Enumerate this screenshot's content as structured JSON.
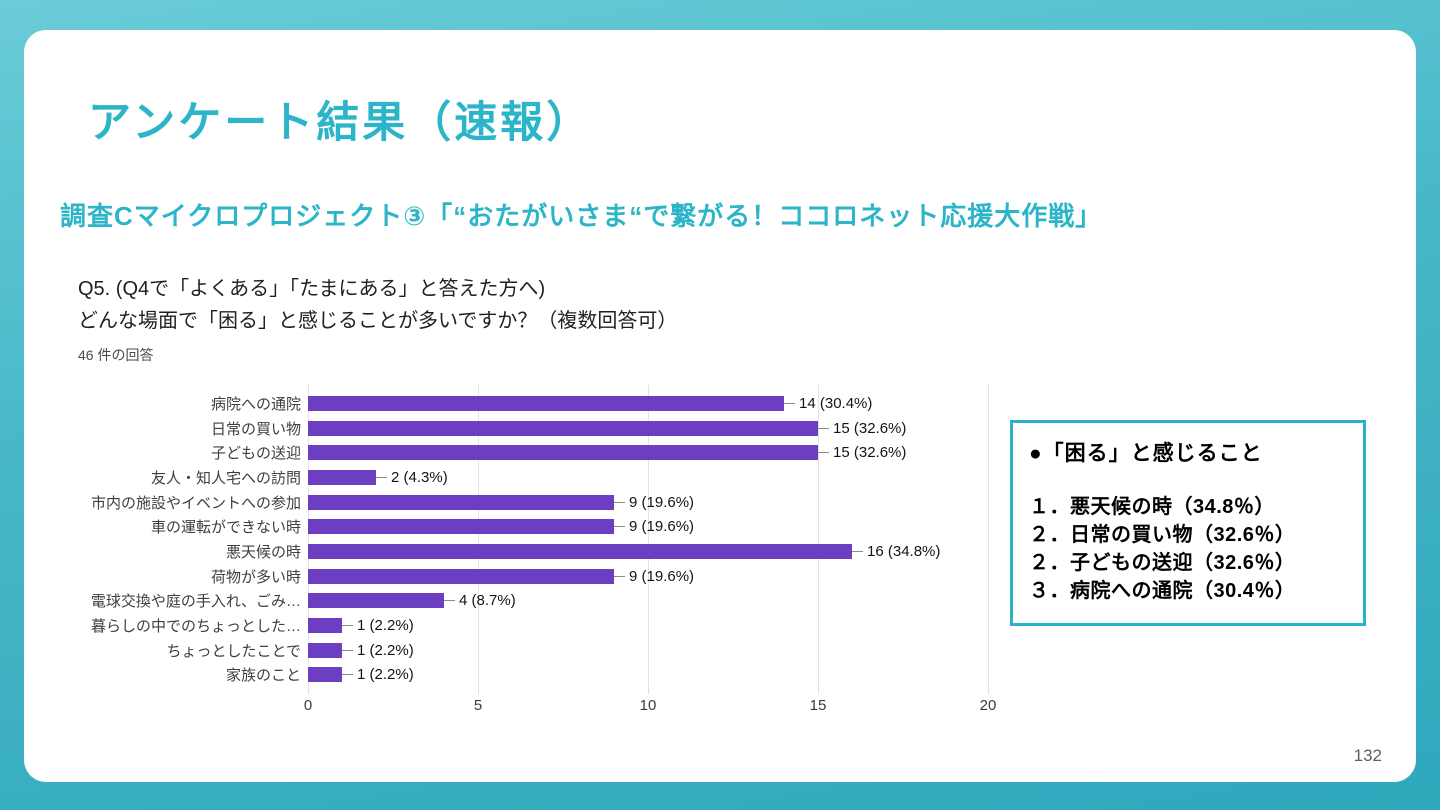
{
  "slide": {
    "title": "アンケート結果（速報）",
    "subtitle": "調査Cマイクロプロジェクト③「“おたがいさま“で繋がる！ココロネット応援大作戦」",
    "page_number": "132"
  },
  "chart_data": {
    "type": "bar",
    "orientation": "horizontal",
    "question_line1": "Q5. (Q4で「よくある」「たまにある」と答えた方へ)",
    "question_line2": "どんな場面で「困る」と感じることが多いですか？（複数回答可）",
    "responses_note": "46 件の回答",
    "categories": [
      "病院への通院",
      "日常の買い物",
      "子どもの送迎",
      "友人・知人宅への訪問",
      "市内の施設やイベントへの参加",
      "車の運転ができない時",
      "悪天候の時",
      "荷物が多い時",
      "電球交換や庭の手入れ、ごみ…",
      "暮らしの中でのちょっとした…",
      "ちょっとしたことで",
      "家族のこと"
    ],
    "values": [
      14,
      15,
      15,
      2,
      9,
      9,
      16,
      9,
      4,
      1,
      1,
      1
    ],
    "value_labels": [
      "14 (30.4%)",
      "15 (32.6%)",
      "15 (32.6%)",
      "2 (4.3%)",
      "9 (19.6%)",
      "9 (19.6%)",
      "16 (34.8%)",
      "9 (19.6%)",
      "4 (8.7%)",
      "1 (2.2%)",
      "1 (2.2%)",
      "1 (2.2%)"
    ],
    "xlim": [
      0,
      20
    ],
    "x_ticks": [
      0,
      5,
      10,
      15,
      20
    ],
    "bar_color": "#6c3ec2",
    "grid": true,
    "legend": "none"
  },
  "callout": {
    "heading": "●「困る」と感じること",
    "items": [
      "１．悪天候の時（34.8％）",
      "２．日常の買い物（32.6％）",
      "２．子どもの送迎（32.6％）",
      "３．病院への通院（30.4％）"
    ],
    "border_color": "#2ab3c6"
  },
  "colors": {
    "accent_teal": "#2cb5c8",
    "background_teal": "#3fb4c5",
    "bar_purple": "#6c3ec2"
  }
}
